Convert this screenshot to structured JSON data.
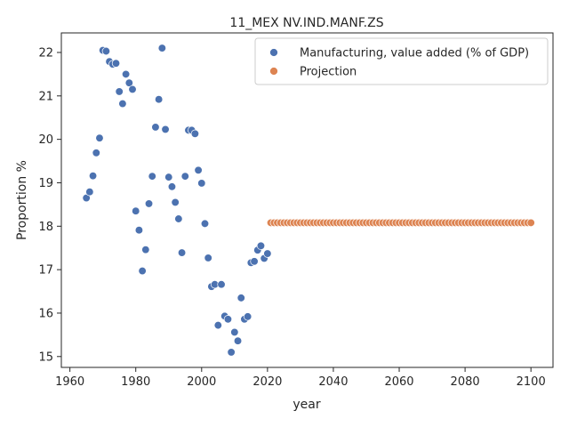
{
  "chart_data": {
    "type": "scatter",
    "title": "11_MEX NV.IND.MANF.ZS",
    "xlabel": "year",
    "ylabel": "Proportion %",
    "xlim": [
      1957.4,
      2106.7
    ],
    "ylim": [
      14.75,
      22.45
    ],
    "xticks": [
      1960,
      1980,
      2000,
      2020,
      2040,
      2060,
      2080,
      2100
    ],
    "yticks": [
      15,
      16,
      17,
      18,
      19,
      20,
      21,
      22
    ],
    "grid": false,
    "legend": {
      "placement": "top-right"
    },
    "series": [
      {
        "name": "Manufacturing, value added (% of GDP)",
        "color": "#4c72b0",
        "points": [
          [
            1965,
            18.65
          ],
          [
            1966,
            18.79
          ],
          [
            1967,
            19.16
          ],
          [
            1968,
            19.69
          ],
          [
            1969,
            20.03
          ],
          [
            1970,
            22.05
          ],
          [
            1971,
            22.03
          ],
          [
            1972,
            21.79
          ],
          [
            1973,
            21.73
          ],
          [
            1974,
            21.75
          ],
          [
            1975,
            21.1
          ],
          [
            1976,
            20.82
          ],
          [
            1977,
            21.5
          ],
          [
            1978,
            21.3
          ],
          [
            1979,
            21.15
          ],
          [
            1980,
            18.35
          ],
          [
            1981,
            17.91
          ],
          [
            1982,
            16.97
          ],
          [
            1983,
            17.46
          ],
          [
            1984,
            18.52
          ],
          [
            1985,
            19.15
          ],
          [
            1986,
            20.28
          ],
          [
            1987,
            20.92
          ],
          [
            1988,
            22.1
          ],
          [
            1989,
            20.23
          ],
          [
            1990,
            19.13
          ],
          [
            1991,
            18.91
          ],
          [
            1992,
            18.55
          ],
          [
            1993,
            18.17
          ],
          [
            1994,
            17.39
          ],
          [
            1995,
            19.15
          ],
          [
            1996,
            20.21
          ],
          [
            1997,
            20.21
          ],
          [
            1998,
            20.13
          ],
          [
            1999,
            19.29
          ],
          [
            2000,
            18.99
          ],
          [
            2001,
            18.06
          ],
          [
            2002,
            17.27
          ],
          [
            2003,
            16.61
          ],
          [
            2004,
            16.66
          ],
          [
            2005,
            15.72
          ],
          [
            2006,
            16.66
          ],
          [
            2007,
            15.93
          ],
          [
            2008,
            15.86
          ],
          [
            2009,
            15.1
          ],
          [
            2010,
            15.56
          ],
          [
            2011,
            15.36
          ],
          [
            2012,
            16.35
          ],
          [
            2013,
            15.86
          ],
          [
            2014,
            15.92
          ],
          [
            2015,
            17.16
          ],
          [
            2016,
            17.19
          ],
          [
            2017,
            17.45
          ],
          [
            2018,
            17.55
          ],
          [
            2019,
            17.26
          ],
          [
            2020,
            17.37
          ]
        ]
      },
      {
        "name": "Projection",
        "color": "#dd8452",
        "start": 2021,
        "end": 2100,
        "value": 18.08
      }
    ]
  }
}
